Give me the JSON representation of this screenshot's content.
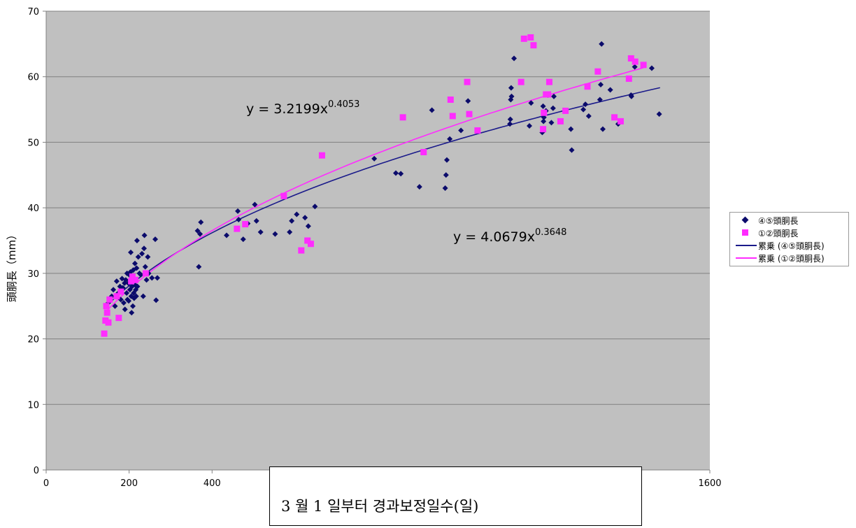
{
  "chart_data": {
    "type": "scatter",
    "title": "",
    "xlabel": "3 월 1 일부터  경과보정일수(일)",
    "ylabel": "頭胴長（mm）",
    "xlim": [
      0,
      1600
    ],
    "ylim": [
      0,
      70
    ],
    "x_ticks": [
      "0",
      "200",
      "400",
      "1600"
    ],
    "y_ticks": [
      "0",
      "10",
      "20",
      "30",
      "40",
      "50",
      "60",
      "70"
    ],
    "grid": true,
    "legend_position": "right",
    "series": [
      {
        "name": "④⑤頭胴長",
        "marker": "diamond",
        "color": "#0b0b6b",
        "points": [
          [
            150,
            25.5
          ],
          [
            158,
            26.5
          ],
          [
            162,
            27.5
          ],
          [
            166,
            25.0
          ],
          [
            170,
            28.8
          ],
          [
            174,
            27.0
          ],
          [
            178,
            28.0
          ],
          [
            180,
            26.0
          ],
          [
            183,
            29.2
          ],
          [
            185,
            27.8
          ],
          [
            187,
            25.5
          ],
          [
            189,
            28.5
          ],
          [
            190,
            24.5
          ],
          [
            192,
            29.0
          ],
          [
            194,
            27.0
          ],
          [
            195,
            30.0
          ],
          [
            196,
            26.0
          ],
          [
            198,
            28.5
          ],
          [
            199,
            25.8
          ],
          [
            200,
            29.8
          ],
          [
            202,
            27.5
          ],
          [
            203,
            30.2
          ],
          [
            204,
            33.2
          ],
          [
            205,
            26.5
          ],
          [
            206,
            24.0
          ],
          [
            207,
            28.0
          ],
          [
            208,
            29.5
          ],
          [
            209,
            25.0
          ],
          [
            210,
            30.5
          ],
          [
            211,
            27.0
          ],
          [
            212,
            26.2
          ],
          [
            213,
            29.0
          ],
          [
            214,
            31.5
          ],
          [
            215,
            28.2
          ],
          [
            216,
            27.5
          ],
          [
            217,
            26.5
          ],
          [
            218,
            30.8
          ],
          [
            219,
            35.0
          ],
          [
            220,
            28.0
          ],
          [
            222,
            32.5
          ],
          [
            225,
            30.0
          ],
          [
            228,
            29.8
          ],
          [
            231,
            33.0
          ],
          [
            234,
            26.5
          ],
          [
            236,
            33.8
          ],
          [
            237,
            35.8
          ],
          [
            239,
            31.0
          ],
          [
            242,
            29.0
          ],
          [
            245,
            32.5
          ],
          [
            247,
            30.0
          ],
          [
            255,
            29.3
          ],
          [
            263,
            35.2
          ],
          [
            265,
            25.9
          ],
          [
            268,
            29.3
          ],
          [
            365,
            36.5
          ],
          [
            368,
            31.0
          ],
          [
            371,
            36.0
          ],
          [
            373,
            37.8
          ],
          [
            435,
            35.8
          ],
          [
            462,
            39.5
          ],
          [
            464,
            38.2
          ],
          [
            475,
            35.2
          ],
          [
            486,
            37.6
          ],
          [
            503,
            40.5
          ],
          [
            507,
            38.0
          ],
          [
            517,
            36.3
          ],
          [
            552,
            36.0
          ],
          [
            587,
            36.3
          ],
          [
            592,
            38.0
          ],
          [
            604,
            39.0
          ],
          [
            624,
            38.5
          ],
          [
            632,
            37.2
          ],
          [
            648,
            40.2
          ],
          [
            791,
            47.5
          ],
          [
            843,
            45.3
          ],
          [
            855,
            45.2
          ],
          [
            900,
            43.2
          ],
          [
            930,
            54.9
          ],
          [
            962,
            43.0
          ],
          [
            964,
            45.0
          ],
          [
            966,
            47.3
          ],
          [
            973,
            50.5
          ],
          [
            1000,
            51.8
          ],
          [
            1017,
            56.3
          ],
          [
            1118,
            52.8
          ],
          [
            1119,
            53.5
          ],
          [
            1120,
            56.5
          ],
          [
            1121,
            58.3
          ],
          [
            1122,
            57.0
          ],
          [
            1128,
            62.8
          ],
          [
            1165,
            52.5
          ],
          [
            1169,
            56.0
          ],
          [
            1196,
            51.5
          ],
          [
            1198,
            55.5
          ],
          [
            1199,
            53.2
          ],
          [
            1200,
            53.8
          ],
          [
            1205,
            54.8
          ],
          [
            1210,
            57.2
          ],
          [
            1218,
            53.0
          ],
          [
            1222,
            55.2
          ],
          [
            1224,
            57.0
          ],
          [
            1265,
            52.0
          ],
          [
            1267,
            48.8
          ],
          [
            1295,
            55.0
          ],
          [
            1300,
            55.8
          ],
          [
            1308,
            54.0
          ],
          [
            1335,
            56.5
          ],
          [
            1337,
            58.8
          ],
          [
            1339,
            65.0
          ],
          [
            1342,
            52.0
          ],
          [
            1360,
            58.0
          ],
          [
            1379,
            52.8
          ],
          [
            1410,
            57.2
          ],
          [
            1411,
            57.0
          ],
          [
            1419,
            61.5
          ],
          [
            1460,
            61.3
          ],
          [
            1478,
            54.3
          ]
        ]
      },
      {
        "name": "①②頭胴長",
        "marker": "square",
        "color": "#ff2cff",
        "points": [
          [
            140,
            20.8
          ],
          [
            143,
            22.8
          ],
          [
            145,
            25.0
          ],
          [
            147,
            24.0
          ],
          [
            150,
            22.5
          ],
          [
            153,
            26.0
          ],
          [
            170,
            26.5
          ],
          [
            175,
            23.2
          ],
          [
            180,
            27.2
          ],
          [
            205,
            28.8
          ],
          [
            208,
            29.5
          ],
          [
            215,
            29.0
          ],
          [
            240,
            30.0
          ],
          [
            460,
            36.8
          ],
          [
            480,
            37.5
          ],
          [
            573,
            41.8
          ],
          [
            638,
            34.5
          ],
          [
            630,
            35.0
          ],
          [
            615,
            33.5
          ],
          [
            665,
            48.0
          ],
          [
            860,
            53.8
          ],
          [
            910,
            48.5
          ],
          [
            975,
            56.5
          ],
          [
            980,
            54.0
          ],
          [
            1015,
            59.2
          ],
          [
            1020,
            54.3
          ],
          [
            1040,
            51.8
          ],
          [
            1145,
            59.2
          ],
          [
            1152,
            65.8
          ],
          [
            1168,
            66.0
          ],
          [
            1175,
            64.8
          ],
          [
            1200,
            54.5
          ],
          [
            1205,
            57.3
          ],
          [
            1210,
            57.3
          ],
          [
            1213,
            59.2
          ],
          [
            1198,
            52.0
          ],
          [
            1240,
            53.2
          ],
          [
            1252,
            54.8
          ],
          [
            1305,
            58.5
          ],
          [
            1330,
            60.8
          ],
          [
            1370,
            53.8
          ],
          [
            1385,
            53.2
          ],
          [
            1405,
            59.7
          ],
          [
            1410,
            62.8
          ],
          [
            1420,
            62.3
          ],
          [
            1440,
            61.8
          ]
        ]
      },
      {
        "name": "累乗 (④⑤頭胴長)",
        "line": true,
        "color": "#1a1a8a",
        "trend": {
          "type": "power",
          "a": 4.0679,
          "b": 0.3648,
          "x_from": 140,
          "x_to": 1480
        }
      },
      {
        "name": "累乗 (①②頭胴長)",
        "line": true,
        "color": "#ff2cff",
        "trend": {
          "type": "power",
          "a": 3.2199,
          "b": 0.4053,
          "x_from": 140,
          "x_to": 1440
        }
      }
    ],
    "annotations": [
      {
        "coef": "y = 3.2199x",
        "exp": "0.4053",
        "series": "累乗 (①②頭胴長)"
      },
      {
        "coef": "y = 4.0679x",
        "exp": "0.3648",
        "series": "累乗 (④⑤頭胴長)"
      }
    ]
  },
  "colors": {
    "plot_area": "#c0c0c0",
    "gridline": "#808080",
    "axis": "#808080"
  }
}
